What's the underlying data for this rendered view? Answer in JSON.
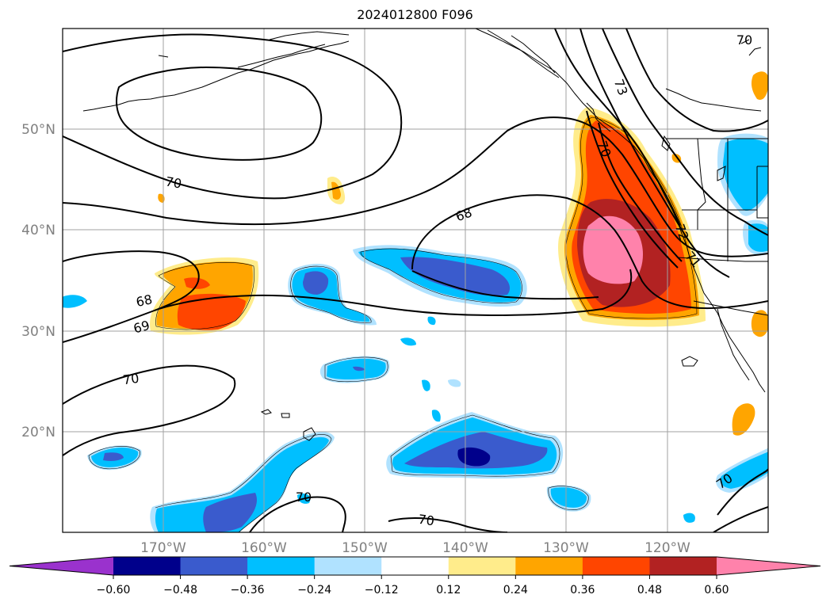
{
  "title": "2024012800 F096",
  "lat_labels": [
    "50°N",
    "40°N",
    "30°N",
    "20°N"
  ],
  "lon_labels": [
    "170°W",
    "160°W",
    "150°W",
    "140°W",
    "130°W",
    "120°W"
  ],
  "contour_labels": [
    "70",
    "68",
    "68",
    "69",
    "70",
    "70",
    "70",
    "70",
    "73",
    "70",
    "71",
    "72",
    "70"
  ],
  "colorbar": {
    "colors": [
      "#9a32cd",
      "#00008b",
      "#3a5bcd",
      "#00bfff",
      "#b0e2ff",
      "#ffffff",
      "#ffec8b",
      "#ffa500",
      "#ff4500",
      "#b22222",
      "#ff82ab"
    ],
    "labels": [
      "−0.60",
      "−0.48",
      "−0.36",
      "−0.24",
      "−0.12",
      "0.12",
      "0.24",
      "0.36",
      "0.48",
      "0.60"
    ]
  }
}
